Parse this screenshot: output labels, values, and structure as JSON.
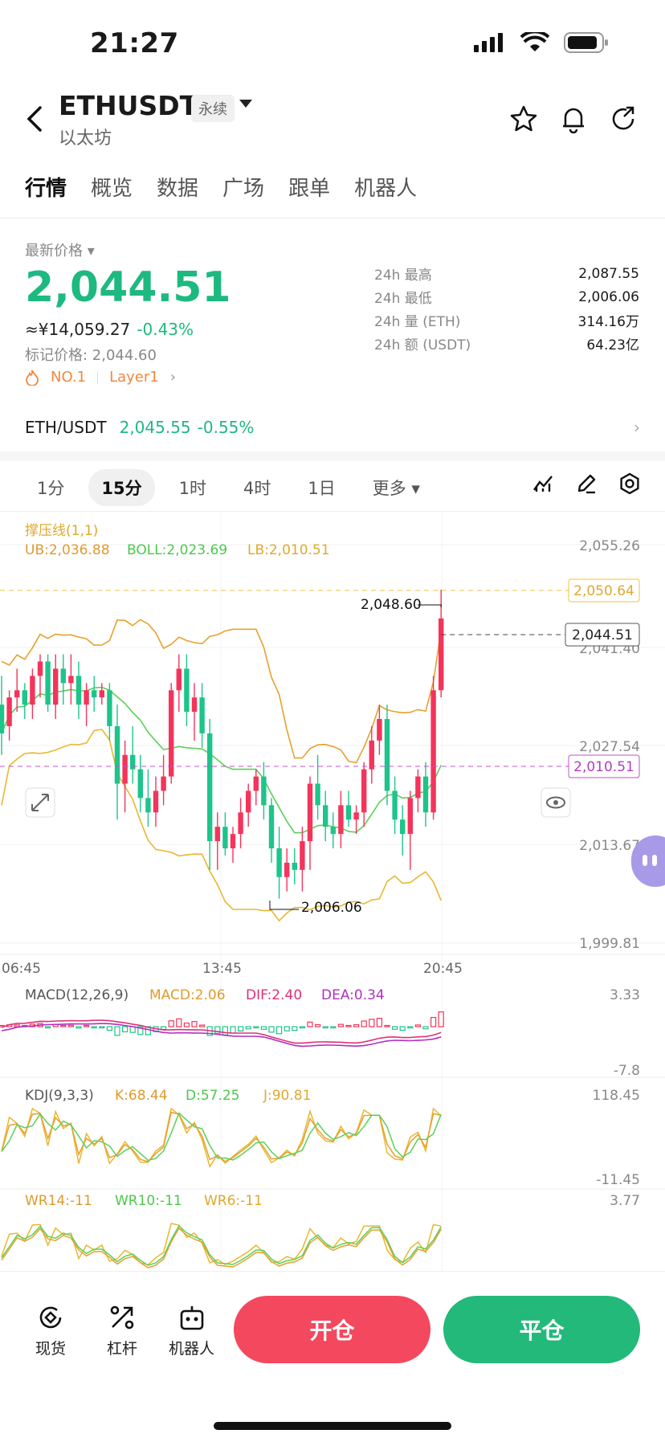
{
  "status": {
    "time": "21:27"
  },
  "header": {
    "pair": "ETHUSDT",
    "badge": "永续",
    "subtitle": "以太坊",
    "icons": [
      "back-icon",
      "star-icon",
      "bell-icon",
      "share-icon"
    ]
  },
  "tabs": [
    "行情",
    "概览",
    "数据",
    "广场",
    "跟单",
    "机器人"
  ],
  "price": {
    "latest_label": "最新价格",
    "value": "2,044.51",
    "cny": "≈¥14,059.27",
    "change": "-0.43%",
    "mark": "标记价格: 2,044.60",
    "tag1": "NO.1",
    "tag2": "Layer1"
  },
  "stats": [
    {
      "k": "24h  最高",
      "v": "2,087.55"
    },
    {
      "k": "24h  最低",
      "v": "2,006.06"
    },
    {
      "k": "24h  量 (ETH)",
      "v": "314.16万"
    },
    {
      "k": "24h  额 (USDT)",
      "v": "64.23亿"
    }
  ],
  "spot": {
    "pair": "ETH/USDT",
    "price": "2,045.55",
    "change": "-0.55%"
  },
  "timeframes": [
    "1分",
    "15分",
    "1时",
    "4时",
    "1日",
    "更多"
  ],
  "chart_data": {
    "type": "candlestick",
    "indicator_title": "撑压线(1,1)",
    "boll": {
      "ub": "UB:2,036.88",
      "boll": "BOLL:2,023.69",
      "lb": "LB:2,010.51"
    },
    "y_ticks": [
      "2,055.26",
      "2,041.40",
      "2,027.54",
      "2,013.67",
      "1,999.81"
    ],
    "x_ticks": [
      "06:45",
      "13:45",
      "20:45"
    ],
    "ylim": [
      1999.81,
      2055.26
    ],
    "resistance": "2,050.64",
    "support": "2,010.51",
    "last_price": "2,044.51",
    "max_label": "2,048.60",
    "min_label": "2,006.06",
    "candles": [
      [
        2033,
        2037,
        2026,
        2029
      ],
      [
        2030,
        2035,
        2028,
        2034
      ],
      [
        2034,
        2038,
        2032,
        2035
      ],
      [
        2035,
        2036,
        2031,
        2033
      ],
      [
        2033,
        2038,
        2031,
        2037
      ],
      [
        2037,
        2040,
        2034,
        2039
      ],
      [
        2039,
        2040,
        2032,
        2033
      ],
      [
        2033,
        2040,
        2031,
        2038
      ],
      [
        2038,
        2040,
        2033,
        2036
      ],
      [
        2036,
        2040,
        2033,
        2037
      ],
      [
        2037,
        2039,
        2031,
        2033
      ],
      [
        2033,
        2036,
        2030,
        2035
      ],
      [
        2035,
        2037,
        2032,
        2034
      ],
      [
        2034,
        2036,
        2033,
        2035
      ],
      [
        2035,
        2036,
        2028,
        2030
      ],
      [
        2030,
        2033,
        2017,
        2022
      ],
      [
        2022,
        2028,
        2018,
        2026
      ],
      [
        2026,
        2030,
        2022,
        2024
      ],
      [
        2024,
        2026,
        2018,
        2020
      ],
      [
        2020,
        2024,
        2016,
        2018
      ],
      [
        2018,
        2023,
        2016,
        2021
      ],
      [
        2021,
        2026,
        2019,
        2023
      ],
      [
        2023,
        2036,
        2022,
        2035
      ],
      [
        2035,
        2040,
        2032,
        2038
      ],
      [
        2038,
        2040,
        2030,
        2032
      ],
      [
        2032,
        2036,
        2028,
        2034
      ],
      [
        2034,
        2036,
        2027,
        2029
      ],
      [
        2029,
        2031,
        2010,
        2014
      ],
      [
        2014,
        2018,
        2010,
        2016
      ],
      [
        2016,
        2018,
        2012,
        2013
      ],
      [
        2013,
        2016,
        2011,
        2015
      ],
      [
        2015,
        2020,
        2013,
        2018
      ],
      [
        2018,
        2022,
        2016,
        2021
      ],
      [
        2021,
        2024,
        2019,
        2023
      ],
      [
        2023,
        2025,
        2017,
        2019
      ],
      [
        2019,
        2020,
        2011,
        2013
      ],
      [
        2013,
        2016,
        2006,
        2009
      ],
      [
        2009,
        2013,
        2007,
        2011
      ],
      [
        2011,
        2013,
        2008,
        2010
      ],
      [
        2010,
        2016,
        2007,
        2014
      ],
      [
        2014,
        2023,
        2010,
        2022
      ],
      [
        2022,
        2026,
        2017,
        2019
      ],
      [
        2019,
        2021,
        2014,
        2016
      ],
      [
        2016,
        2018,
        2013,
        2015
      ],
      [
        2015,
        2021,
        2013,
        2019
      ],
      [
        2019,
        2021,
        2016,
        2017
      ],
      [
        2017,
        2019,
        2015,
        2018
      ],
      [
        2018,
        2025,
        2016,
        2024
      ],
      [
        2024,
        2030,
        2022,
        2028
      ],
      [
        2028,
        2033,
        2026,
        2031
      ],
      [
        2031,
        2033,
        2019,
        2021
      ],
      [
        2021,
        2023,
        2015,
        2017
      ],
      [
        2017,
        2019,
        2012,
        2015
      ],
      [
        2015,
        2021,
        2010,
        2020
      ],
      [
        2020,
        2024,
        2018,
        2023
      ],
      [
        2023,
        2025,
        2016,
        2018
      ],
      [
        2018,
        2037,
        2017,
        2035
      ],
      [
        2035,
        2049,
        2034,
        2045
      ]
    ],
    "macd": {
      "title": "MACD(12,26,9)",
      "macd": "MACD:2.06",
      "dif": "DIF:2.40",
      "dea": "DEA:0.34",
      "ymax": "3.33",
      "ymin": "-7.8"
    },
    "kdj": {
      "title": "KDJ(9,3,3)",
      "k": "K:68.44",
      "d": "D:57.25",
      "j": "J:90.81",
      "ymax": "118.45",
      "ymin": "-11.45"
    },
    "wr": {
      "wr14": "WR14:-11",
      "wr10": "WR10:-11",
      "wr6": "WR6:-11",
      "ymax": "3.77"
    }
  },
  "bottom": {
    "nav": [
      {
        "label": "现货",
        "icon": "spot-icon"
      },
      {
        "label": "杠杆",
        "icon": "leverage-icon"
      },
      {
        "label": "机器人",
        "icon": "robot-icon"
      }
    ],
    "open": "开仓",
    "close": "平仓"
  }
}
